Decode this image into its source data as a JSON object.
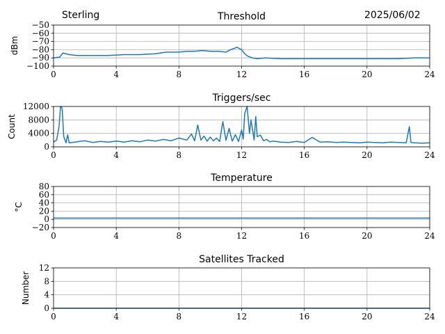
{
  "header": {
    "station": "Sterling",
    "date": "2025/06/02"
  },
  "colors": {
    "line": "#1f77b4",
    "grid": "#b0b0b0",
    "axes": "#000000"
  },
  "chart_data": [
    {
      "type": "line",
      "title": "Threshold",
      "ylabel": "dBm",
      "xlim": [
        0,
        24
      ],
      "ylim": [
        -100,
        -50
      ],
      "xticks": [
        "0",
        "4",
        "8",
        "12",
        "16",
        "20",
        "24"
      ],
      "yticks": [
        "−50",
        "−60",
        "−70",
        "−80",
        "−90",
        "−100"
      ],
      "grid": true,
      "series": [
        {
          "x": [
            0,
            0.4,
            0.6,
            1.0,
            1.5,
            2.5,
            3.5,
            4.5,
            5.5,
            6.5,
            7.2,
            8.0,
            8.5,
            9.0,
            9.5,
            10.0,
            10.5,
            11.0,
            11.3,
            11.7,
            12.0,
            12.2,
            12.4,
            12.7,
            13.0,
            13.5,
            14.5,
            16.0,
            17.0,
            18.0,
            19.0,
            20.0,
            21.0,
            22.0,
            23.0,
            24.0
          ],
          "y": [
            -90,
            -89,
            -84,
            -86,
            -87,
            -87,
            -87,
            -86,
            -86,
            -85,
            -83,
            -83,
            -82,
            -82,
            -81,
            -82,
            -82,
            -83,
            -80,
            -77,
            -80,
            -85,
            -88,
            -90,
            -91,
            -90,
            -91,
            -91,
            -91,
            -91,
            -91,
            -91,
            -91,
            -91,
            -90,
            -90
          ]
        }
      ]
    },
    {
      "type": "line",
      "title": "Triggers/sec",
      "ylabel": "Count",
      "xlim": [
        0,
        24
      ],
      "ylim": [
        0,
        12000
      ],
      "xticks": [
        "0",
        "4",
        "8",
        "12",
        "16",
        "20",
        "24"
      ],
      "yticks": [
        "12000",
        "8000",
        "4000",
        "0"
      ],
      "grid": true,
      "series": [
        {
          "x": [
            0,
            0.2,
            0.35,
            0.45,
            0.55,
            0.65,
            0.8,
            0.9,
            1.0,
            1.5,
            2.0,
            2.5,
            3.0,
            3.5,
            4.0,
            4.5,
            5.0,
            5.5,
            6.0,
            6.5,
            7.0,
            7.5,
            8.0,
            8.5,
            8.8,
            9.0,
            9.2,
            9.4,
            9.6,
            9.8,
            10.0,
            10.2,
            10.4,
            10.6,
            10.8,
            11.0,
            11.2,
            11.4,
            11.6,
            11.8,
            12.0,
            12.1,
            12.2,
            12.35,
            12.5,
            12.6,
            12.8,
            12.9,
            13.0,
            13.2,
            13.4,
            13.6,
            13.8,
            14.0,
            14.5,
            15.0,
            15.5,
            16.0,
            16.5,
            17.0,
            17.5,
            18.0,
            18.5,
            19.0,
            19.5,
            20.0,
            20.5,
            21.0,
            21.5,
            22.0,
            22.5,
            22.7,
            22.8,
            23.0,
            23.5,
            24.0
          ],
          "y": [
            1500,
            2000,
            6000,
            12000,
            11500,
            3000,
            1200,
            3600,
            1200,
            1500,
            1800,
            1300,
            1600,
            1400,
            1700,
            1400,
            1800,
            1500,
            2000,
            1700,
            2200,
            1800,
            2600,
            2000,
            3800,
            1800,
            6500,
            2000,
            3200,
            1700,
            2900,
            1800,
            2600,
            1600,
            7500,
            1900,
            5500,
            1700,
            3600,
            1600,
            5000,
            2300,
            10000,
            12000,
            4000,
            8000,
            2000,
            9000,
            3000,
            3500,
            1800,
            2200,
            1500,
            1700,
            1400,
            1300,
            1600,
            1300,
            2800,
            1400,
            1500,
            1300,
            1400,
            1300,
            1200,
            1400,
            1300,
            1200,
            1400,
            1300,
            1200,
            6000,
            1300,
            1200,
            1100,
            1200
          ]
        }
      ]
    },
    {
      "type": "line",
      "title": "Temperature",
      "ylabel": "°C",
      "xlim": [
        0,
        24
      ],
      "ylim": [
        -20,
        80
      ],
      "xticks": [
        "0",
        "4",
        "8",
        "12",
        "16",
        "20",
        "24"
      ],
      "yticks": [
        "80",
        "60",
        "40",
        "20",
        "0",
        "−20"
      ],
      "grid": true,
      "series": [
        {
          "x": [
            0,
            24
          ],
          "y": [
            3,
            3
          ]
        }
      ]
    },
    {
      "type": "line",
      "title": "Satellites Tracked",
      "ylabel": "Number",
      "xlim": [
        0,
        24
      ],
      "ylim": [
        0,
        12
      ],
      "xticks": [
        "0",
        "4",
        "8",
        "12",
        "16",
        "20",
        "24"
      ],
      "yticks": [
        "12",
        "8",
        "4",
        "0"
      ],
      "grid": true,
      "series": [
        {
          "x": [
            0,
            24
          ],
          "y": [
            0,
            0
          ]
        }
      ]
    }
  ]
}
